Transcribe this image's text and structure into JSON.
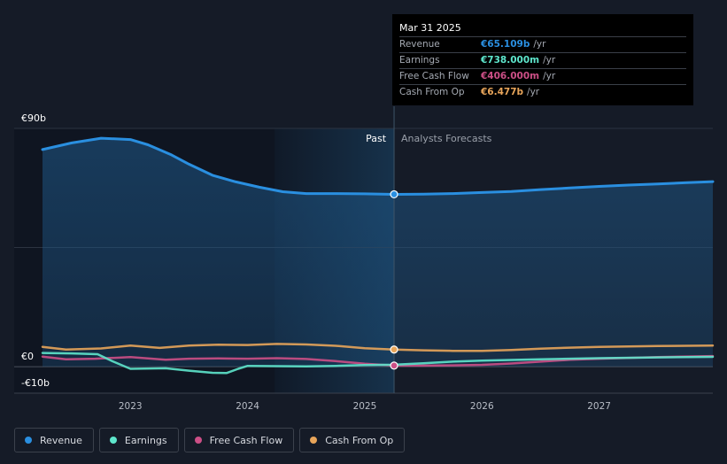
{
  "colors": {
    "background": "#151b27",
    "revenue": "#2a8fe0",
    "earnings": "#5ee6cc",
    "free_cash_flow": "#cc4f86",
    "cash_from_op": "#e8a55a",
    "past_shade": "#0f1521",
    "highlight": "#173550"
  },
  "tooltip": {
    "date": "Mar 31 2025",
    "rows": [
      {
        "label": "Revenue",
        "value": "€65.109b",
        "unit": "/yr",
        "color": "#2a8fe0"
      },
      {
        "label": "Earnings",
        "value": "€738.000m",
        "unit": "/yr",
        "color": "#5ee6cc"
      },
      {
        "label": "Free Cash Flow",
        "value": "€406.000m",
        "unit": "/yr",
        "color": "#cc4f86"
      },
      {
        "label": "Cash From Op",
        "value": "€6.477b",
        "unit": "/yr",
        "color": "#e8a55a"
      }
    ]
  },
  "legend": [
    {
      "label": "Revenue",
      "color": "#2a8fe0"
    },
    {
      "label": "Earnings",
      "color": "#5ee6cc"
    },
    {
      "label": "Free Cash Flow",
      "color": "#cc4f86"
    },
    {
      "label": "Cash From Op",
      "color": "#e8a55a"
    }
  ],
  "chart_data": {
    "type": "line",
    "title": "",
    "xlabel": "",
    "ylabel": "",
    "xlim": [
      2022.25,
      2027.97
    ],
    "ylim": [
      -10,
      90
    ],
    "y_tick_labels": [
      {
        "value": 90,
        "label": "€90b"
      },
      {
        "value": 0,
        "label": "€0"
      },
      {
        "value": -10,
        "label": "-€10b"
      }
    ],
    "x_ticks": [
      {
        "value": 2023,
        "label": "2023"
      },
      {
        "value": 2024,
        "label": "2024"
      },
      {
        "value": 2025,
        "label": "2025"
      },
      {
        "value": 2026,
        "label": "2026"
      },
      {
        "value": 2027,
        "label": "2027"
      }
    ],
    "divider_x": 2025.25,
    "highlight_start_x": 2024.23,
    "past_label": "Past",
    "forecast_label": "Analysts Forecasts",
    "series": [
      {
        "name": "Revenue",
        "key": "revenue",
        "area": true,
        "points": [
          [
            2022.25,
            82
          ],
          [
            2022.5,
            84.5
          ],
          [
            2022.75,
            86.3
          ],
          [
            2023.0,
            85.8
          ],
          [
            2023.15,
            83.8
          ],
          [
            2023.35,
            80
          ],
          [
            2023.5,
            76.5
          ],
          [
            2023.7,
            72.3
          ],
          [
            2023.9,
            69.8
          ],
          [
            2024.1,
            67.8
          ],
          [
            2024.3,
            66.1
          ],
          [
            2024.5,
            65.4
          ],
          [
            2024.75,
            65.4
          ],
          [
            2025.0,
            65.3
          ],
          [
            2025.25,
            65.1
          ],
          [
            2025.5,
            65.2
          ],
          [
            2025.75,
            65.4
          ],
          [
            2026.0,
            65.8
          ],
          [
            2026.25,
            66.2
          ],
          [
            2026.5,
            66.9
          ],
          [
            2026.75,
            67.5
          ],
          [
            2027.0,
            68.1
          ],
          [
            2027.25,
            68.6
          ],
          [
            2027.5,
            69.0
          ],
          [
            2027.75,
            69.5
          ],
          [
            2027.97,
            69.9
          ]
        ]
      },
      {
        "name": "Earnings",
        "key": "earnings",
        "points": [
          [
            2022.25,
            5.2
          ],
          [
            2022.5,
            5.0
          ],
          [
            2022.72,
            4.7
          ],
          [
            2022.85,
            2.0
          ],
          [
            2023.0,
            -0.8
          ],
          [
            2023.3,
            -0.6
          ],
          [
            2023.5,
            -1.5
          ],
          [
            2023.7,
            -2.3
          ],
          [
            2023.82,
            -2.4
          ],
          [
            2023.92,
            -0.8
          ],
          [
            2024.0,
            0.3
          ],
          [
            2024.25,
            0.2
          ],
          [
            2024.5,
            0.1
          ],
          [
            2024.75,
            0.3
          ],
          [
            2025.0,
            0.6
          ],
          [
            2025.25,
            0.74
          ],
          [
            2025.5,
            1.3
          ],
          [
            2025.75,
            1.9
          ],
          [
            2026.0,
            2.3
          ],
          [
            2026.5,
            2.8
          ],
          [
            2027.0,
            3.2
          ],
          [
            2027.5,
            3.5
          ],
          [
            2027.97,
            3.7
          ]
        ]
      },
      {
        "name": "Free Cash Flow",
        "key": "free_cash_flow",
        "points": [
          [
            2022.25,
            3.8
          ],
          [
            2022.45,
            2.8
          ],
          [
            2022.7,
            3.0
          ],
          [
            2023.0,
            3.6
          ],
          [
            2023.3,
            2.6
          ],
          [
            2023.5,
            3.0
          ],
          [
            2023.75,
            3.1
          ],
          [
            2024.0,
            3.0
          ],
          [
            2024.25,
            3.2
          ],
          [
            2024.5,
            2.9
          ],
          [
            2024.75,
            2.1
          ],
          [
            2025.0,
            1.1
          ],
          [
            2025.25,
            0.41
          ],
          [
            2025.5,
            0.4
          ],
          [
            2025.75,
            0.5
          ],
          [
            2026.0,
            0.7
          ],
          [
            2026.25,
            1.2
          ],
          [
            2026.5,
            1.9
          ],
          [
            2026.75,
            2.6
          ],
          [
            2027.0,
            3.0
          ],
          [
            2027.5,
            3.6
          ],
          [
            2027.97,
            4.0
          ]
        ]
      },
      {
        "name": "Cash From Op",
        "key": "cash_from_op",
        "points": [
          [
            2022.25,
            7.5
          ],
          [
            2022.45,
            6.5
          ],
          [
            2022.75,
            6.9
          ],
          [
            2023.0,
            8.0
          ],
          [
            2023.25,
            7.1
          ],
          [
            2023.5,
            8.0
          ],
          [
            2023.75,
            8.3
          ],
          [
            2024.0,
            8.2
          ],
          [
            2024.25,
            8.6
          ],
          [
            2024.5,
            8.4
          ],
          [
            2024.75,
            7.9
          ],
          [
            2025.0,
            7.0
          ],
          [
            2025.25,
            6.48
          ],
          [
            2025.5,
            6.2
          ],
          [
            2025.75,
            6.0
          ],
          [
            2026.0,
            6.0
          ],
          [
            2026.25,
            6.3
          ],
          [
            2026.5,
            6.8
          ],
          [
            2026.75,
            7.2
          ],
          [
            2027.0,
            7.5
          ],
          [
            2027.5,
            7.8
          ],
          [
            2027.97,
            8.0
          ]
        ]
      }
    ],
    "markers": [
      {
        "key": "revenue",
        "x": 2025.25,
        "y": 65.109
      },
      {
        "key": "cash_from_op",
        "x": 2025.25,
        "y": 6.477
      },
      {
        "key": "free_cash_flow",
        "x": 2025.25,
        "y": 0.406
      }
    ]
  }
}
